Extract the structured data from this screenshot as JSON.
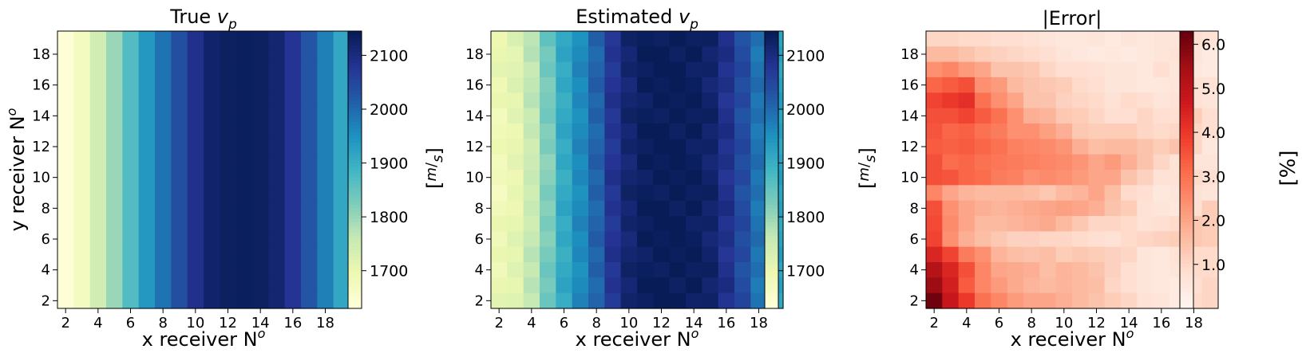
{
  "chart_data": [
    {
      "type": "heatmap",
      "title_main": "True ",
      "title_var": "v",
      "title_sub": "p",
      "xlabel_main": "x receiver N",
      "xlabel_sup": "o",
      "ylabel_main": "y receiver N",
      "ylabel_sup": "o",
      "x_ticks": [
        "2",
        "4",
        "6",
        "8",
        "10",
        "12",
        "14",
        "16",
        "18"
      ],
      "y_ticks": [
        "2",
        "4",
        "6",
        "8",
        "10",
        "12",
        "14",
        "16",
        "18"
      ],
      "x_range": [
        1.5,
        19.5
      ],
      "y_range": [
        1.5,
        19.5
      ],
      "colormap": "YlGnBu",
      "value_range": [
        1630,
        2145
      ],
      "colorbar_ticks": [
        "1700",
        "1800",
        "1900",
        "2000",
        "2100"
      ],
      "colorbar_tick_values": [
        1700,
        1800,
        1900,
        2000,
        2100
      ],
      "colorbar_label": "[m/s]",
      "column_profile": [
        1635,
        1670,
        1740,
        1800,
        1870,
        1940,
        1990,
        2040,
        2090,
        2125,
        2135,
        2140,
        2135,
        2120,
        2080,
        2030,
        1975,
        1915
      ],
      "values_note": "identical for every row"
    },
    {
      "type": "heatmap",
      "title_main": "Estimated ",
      "title_var": "v",
      "title_sub": "p",
      "xlabel_main": "x receiver N",
      "xlabel_sup": "o",
      "x_ticks": [
        "2",
        "4",
        "6",
        "8",
        "10",
        "12",
        "14",
        "16",
        "18"
      ],
      "y_ticks": [
        "2",
        "4",
        "6",
        "8",
        "10",
        "12",
        "14",
        "16",
        "18"
      ],
      "x_range": [
        1.5,
        19.5
      ],
      "y_range": [
        1.5,
        19.5
      ],
      "colormap": "YlGnBu",
      "value_range": [
        1630,
        2145
      ],
      "colorbar_ticks": [
        "1700",
        "1800",
        "1900",
        "2000",
        "2100"
      ],
      "colorbar_tick_values": [
        1700,
        1800,
        1900,
        2000,
        2100
      ],
      "colorbar_label": "[m/s]",
      "column_profile": [
        1700,
        1720,
        1770,
        1840,
        1910,
        1960,
        2010,
        2080,
        2120,
        2140,
        2145,
        2145,
        2140,
        2125,
        2090,
        2045,
        1990,
        1925
      ]
    },
    {
      "type": "heatmap",
      "title_main": "|Error|",
      "xlabel_main": "x receiver N",
      "xlabel_sup": "o",
      "x_ticks": [
        "2",
        "4",
        "6",
        "8",
        "10",
        "12",
        "14",
        "16",
        "18"
      ],
      "y_ticks": [
        "2",
        "4",
        "6",
        "8",
        "10",
        "12",
        "14",
        "16",
        "18"
      ],
      "x_range": [
        1.5,
        19.5
      ],
      "y_range": [
        1.5,
        19.5
      ],
      "colormap": "Reds",
      "value_range": [
        0,
        6.3
      ],
      "colorbar_ticks": [
        "1.0",
        "2.0",
        "3.0",
        "4.0",
        "5.0",
        "6.0"
      ],
      "colorbar_tick_values": [
        1,
        2,
        3,
        4,
        5,
        6
      ],
      "colorbar_label": "[%]",
      "rows_top_to_bottom": [
        [
          1.0,
          1.0,
          0.9,
          0.9,
          0.8,
          0.8,
          0.7,
          0.6,
          0.5,
          0.5,
          0.6,
          0.4,
          0.6,
          0.5,
          0.6,
          0.6,
          0.8,
          0.7
        ],
        [
          1.6,
          1.6,
          1.4,
          1.2,
          1.1,
          1.0,
          0.9,
          0.8,
          0.6,
          0.5,
          0.4,
          0.5,
          0.4,
          0.5,
          0.6,
          0.7,
          0.6,
          0.4
        ],
        [
          2.4,
          2.6,
          2.2,
          2.0,
          1.4,
          1.4,
          1.3,
          1.0,
          0.8,
          0.8,
          0.7,
          0.6,
          0.6,
          0.5,
          0.8,
          0.6,
          0.5,
          0.4
        ],
        [
          3.2,
          3.4,
          3.6,
          2.4,
          2.2,
          1.6,
          1.4,
          1.3,
          1.2,
          0.9,
          0.8,
          0.6,
          0.6,
          0.5,
          0.5,
          0.6,
          0.7,
          0.7
        ],
        [
          3.8,
          4.0,
          4.2,
          3.0,
          2.4,
          2.0,
          1.4,
          1.4,
          1.1,
          1.0,
          0.9,
          0.7,
          0.9,
          0.8,
          0.6,
          0.7,
          0.7,
          0.6
        ],
        [
          3.6,
          3.6,
          3.8,
          3.4,
          3.0,
          2.4,
          1.8,
          1.7,
          1.3,
          1.2,
          1.0,
          0.8,
          0.8,
          1.0,
          0.8,
          0.8,
          1.2,
          0.8
        ],
        [
          3.5,
          3.2,
          3.3,
          3.0,
          2.8,
          2.4,
          2.4,
          2.1,
          1.8,
          1.3,
          1.2,
          1.2,
          1.2,
          1.0,
          0.9,
          1.0,
          1.0,
          0.8
        ],
        [
          3.4,
          3.3,
          3.4,
          3.2,
          3.0,
          2.7,
          2.6,
          2.5,
          2.3,
          1.8,
          1.5,
          1.6,
          1.6,
          1.4,
          1.2,
          1.4,
          1.0,
          0.5
        ],
        [
          3.6,
          3.1,
          3.2,
          3.0,
          2.9,
          2.8,
          2.7,
          2.6,
          2.5,
          2.3,
          2.0,
          2.2,
          1.8,
          1.4,
          1.0,
          0.7,
          0.6,
          0.6
        ],
        [
          3.6,
          3.5,
          3.2,
          3.1,
          2.8,
          2.7,
          2.4,
          2.5,
          2.4,
          2.2,
          2.0,
          2.0,
          1.4,
          1.1,
          0.7,
          0.7,
          0.9,
          0.8
        ],
        [
          2.6,
          2.0,
          1.7,
          1.6,
          1.6,
          1.6,
          1.5,
          1.3,
          1.6,
          1.7,
          2.0,
          1.5,
          0.9,
          0.8,
          0.5,
          0.6,
          0.7,
          0.6
        ],
        [
          3.6,
          2.4,
          2.0,
          1.8,
          1.7,
          1.8,
          1.9,
          2.0,
          2.1,
          2.0,
          1.8,
          1.4,
          1.2,
          0.7,
          0.6,
          0.5,
          0.8,
          1.2
        ],
        [
          3.7,
          2.5,
          2.0,
          1.6,
          1.6,
          1.7,
          1.8,
          1.9,
          1.6,
          1.3,
          1.0,
          1.0,
          0.9,
          0.7,
          0.8,
          0.9,
          1.3,
          1.2
        ],
        [
          3.8,
          2.4,
          1.8,
          1.5,
          1.3,
          1.1,
          1.1,
          1.0,
          1.0,
          0.9,
          0.8,
          0.7,
          0.9,
          1.0,
          1.1,
          1.2,
          1.3,
          1.2
        ],
        [
          4.4,
          3.8,
          2.8,
          2.4,
          1.7,
          1.5,
          1.4,
          1.5,
          1.2,
          1.3,
          1.2,
          1.1,
          1.0,
          0.6,
          0.5,
          0.7,
          0.9,
          0.9
        ],
        [
          5.2,
          4.4,
          3.6,
          2.6,
          2.0,
          1.9,
          1.8,
          1.5,
          1.7,
          1.6,
          1.4,
          1.1,
          0.8,
          0.6,
          0.5,
          0.6,
          0.9,
          0.9
        ],
        [
          5.6,
          4.6,
          3.4,
          2.6,
          2.2,
          1.9,
          1.7,
          1.6,
          1.7,
          1.6,
          1.5,
          1.0,
          0.8,
          0.6,
          0.5,
          0.4,
          0.8,
          1.0
        ],
        [
          6.2,
          4.8,
          4.0,
          3.0,
          2.6,
          2.2,
          2.0,
          2.0,
          1.8,
          1.6,
          1.4,
          1.2,
          1.0,
          0.7,
          0.6,
          0.4,
          0.9,
          1.0
        ]
      ]
    }
  ]
}
